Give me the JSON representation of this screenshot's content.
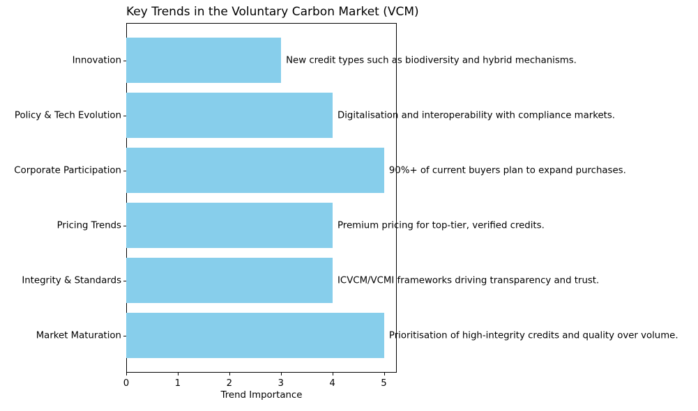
{
  "chart_data": {
    "type": "bar",
    "orientation": "horizontal",
    "title": "Key Trends in the Voluntary Carbon Market (VCM)",
    "xlabel": "Trend Importance",
    "ylabel": "",
    "categories_top_to_bottom": [
      "Innovation",
      "Policy & Tech Evolution",
      "Corporate Participation",
      "Pricing Trends",
      "Integrity & Standards",
      "Market Maturation"
    ],
    "values_top_to_bottom": [
      3,
      4,
      5,
      4,
      4,
      5
    ],
    "annotations_top_to_bottom": [
      "New credit types such as biodiversity and hybrid mechanisms.",
      "Digitalisation and interoperability with compliance markets.",
      "90%+ of current buyers plan to expand purchases.",
      "Premium pricing for top-tier, verified credits.",
      "ICVCM/VCMI frameworks driving transparency and trust.",
      "Prioritisation of high-integrity credits and quality over volume."
    ],
    "xticks": [
      0,
      1,
      2,
      3,
      4,
      5
    ],
    "xlim": [
      0,
      5.25
    ],
    "annotation_x_offset": 0.1,
    "bar_color": "#87CEEB",
    "grid": false,
    "legend": null
  }
}
